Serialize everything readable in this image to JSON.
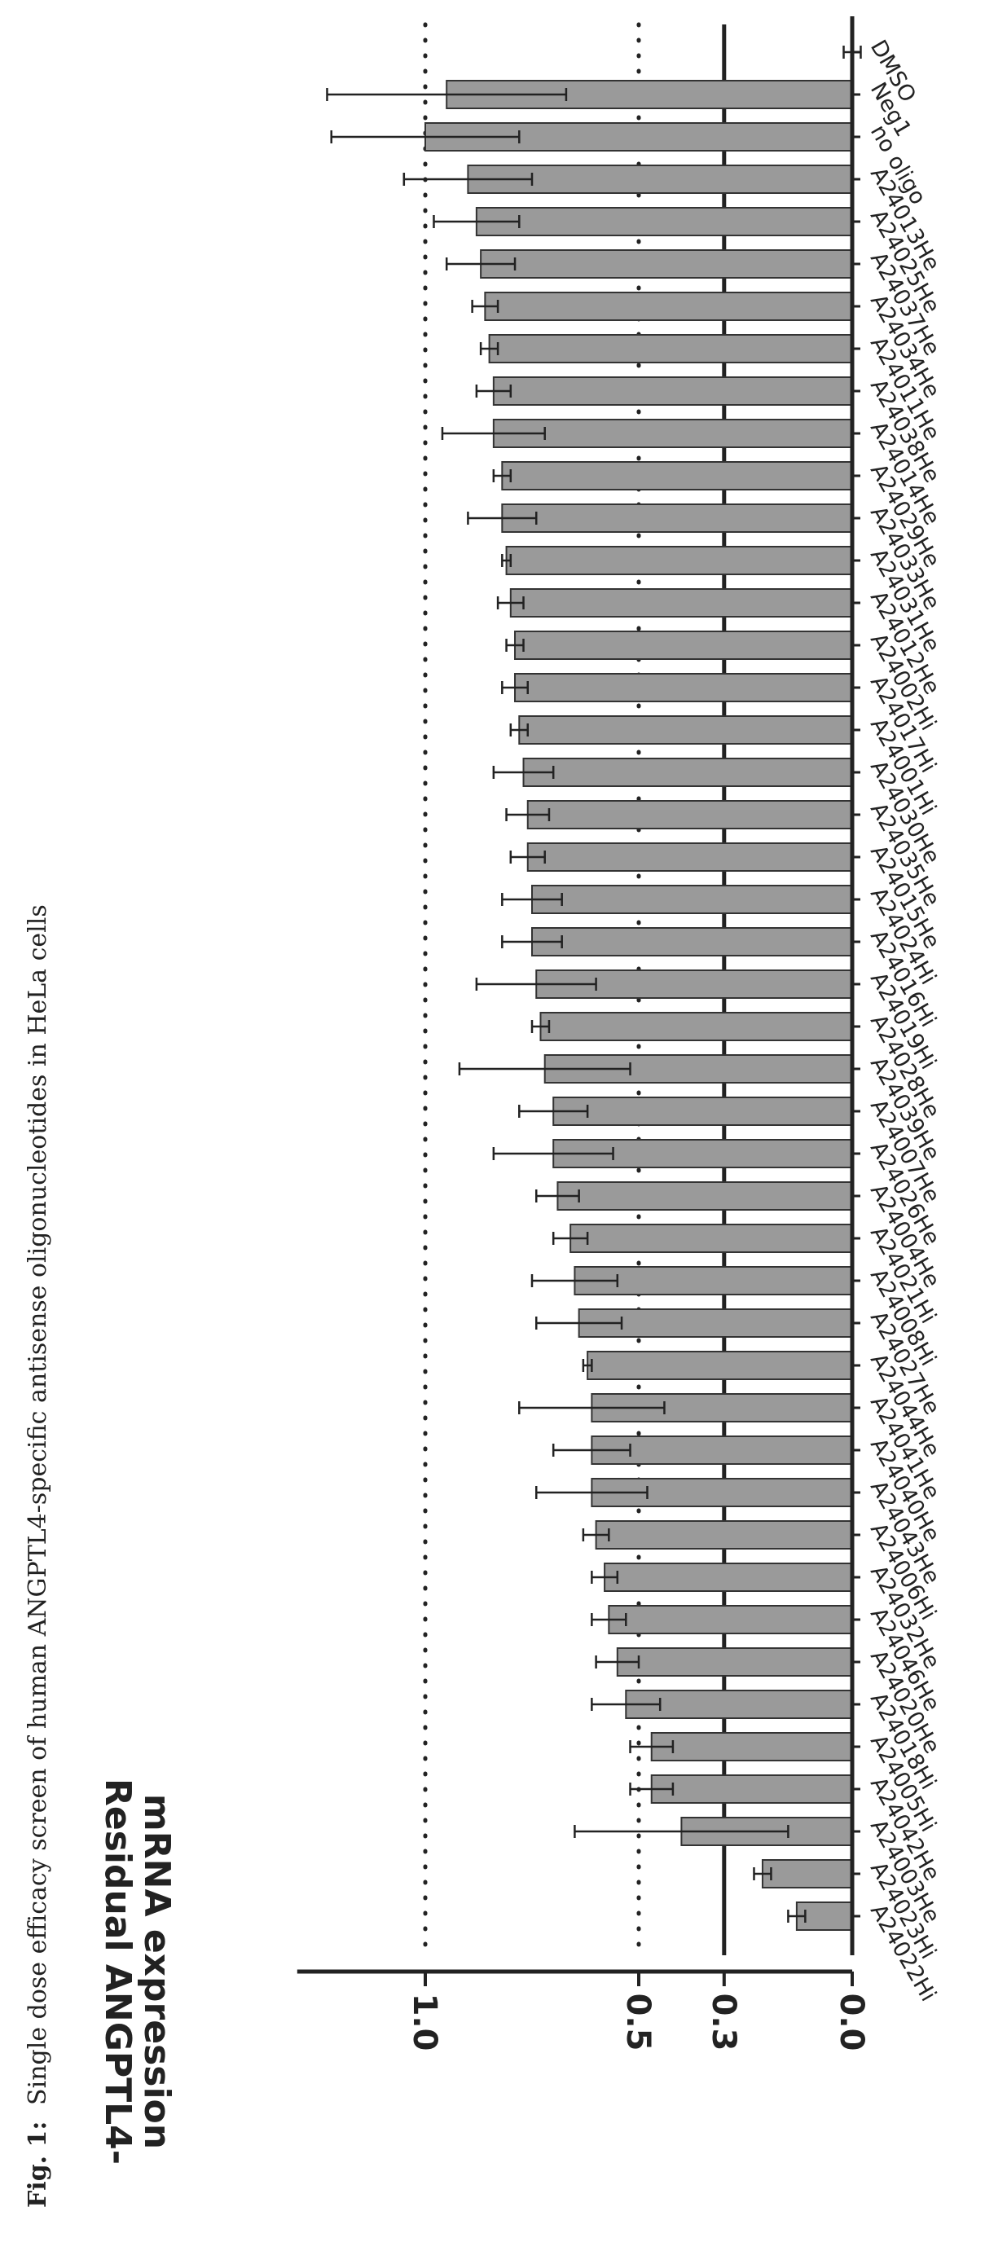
{
  "caption": {
    "prefix": "Fig. 1:",
    "text": "Single dose efficacy screen of human ANGPTL4-specific antisense oligonucleotides in HeLa cells"
  },
  "chart_data": {
    "type": "bar",
    "orientation": "horizontal",
    "ylabel_line1": "Residual ANGPTL4-",
    "ylabel_line2": "mRNA expression",
    "value_axis": {
      "range": [
        0,
        1.3
      ],
      "ticks": [
        0.0,
        0.3,
        0.5,
        1.0
      ],
      "tick_labels": [
        "0.0",
        "0.3",
        "0.5",
        "1.0"
      ]
    },
    "reference_lines": [
      {
        "value": 0.3,
        "style": "solid"
      },
      {
        "value": 0.5,
        "style": "dotted"
      },
      {
        "value": 1.0,
        "style": "dotted"
      }
    ],
    "bar_color": "#9a9a9a",
    "categories": [
      "DMSO",
      "Neg1",
      "no oligo",
      "A24013He",
      "A24025He",
      "A24037He",
      "A24034He",
      "A24011He",
      "A24038He",
      "A24014He",
      "A24029He",
      "A24033He",
      "A24031He",
      "A24012He",
      "A24002Hi",
      "A24017Hi",
      "A24001Hi",
      "A24030He",
      "A24035He",
      "A24015He",
      "A24024Hi",
      "A24016Hi",
      "A24019Hi",
      "A24028He",
      "A24039He",
      "A24007He",
      "A24026He",
      "A24004He",
      "A24021Hi",
      "A24008Hi",
      "A24027He",
      "A24044He",
      "A24041He",
      "A24040He",
      "A24043He",
      "A24006Hi",
      "A24032He",
      "A24046He",
      "A24020He",
      "A24018Hi",
      "A24005Hi",
      "A24042He",
      "A24003He",
      "A24023Hi",
      "A24022Hi"
    ],
    "values": [
      0.0,
      0.95,
      1.0,
      0.9,
      0.88,
      0.87,
      0.86,
      0.85,
      0.84,
      0.84,
      0.82,
      0.82,
      0.81,
      0.8,
      0.79,
      0.79,
      0.78,
      0.77,
      0.76,
      0.76,
      0.75,
      0.75,
      0.74,
      0.73,
      0.72,
      0.7,
      0.7,
      0.69,
      0.66,
      0.65,
      0.64,
      0.62,
      0.61,
      0.61,
      0.61,
      0.6,
      0.58,
      0.57,
      0.55,
      0.53,
      0.47,
      0.47,
      0.4,
      0.21,
      0.13
    ],
    "errors": [
      0.02,
      0.28,
      0.22,
      0.15,
      0.1,
      0.08,
      0.03,
      0.02,
      0.04,
      0.12,
      0.02,
      0.08,
      0.01,
      0.03,
      0.02,
      0.03,
      0.02,
      0.07,
      0.05,
      0.04,
      0.07,
      0.07,
      0.14,
      0.02,
      0.2,
      0.08,
      0.14,
      0.05,
      0.04,
      0.1,
      0.1,
      0.01,
      0.17,
      0.09,
      0.13,
      0.03,
      0.03,
      0.04,
      0.05,
      0.08,
      0.05,
      0.05,
      0.25,
      0.02,
      0.02
    ]
  }
}
